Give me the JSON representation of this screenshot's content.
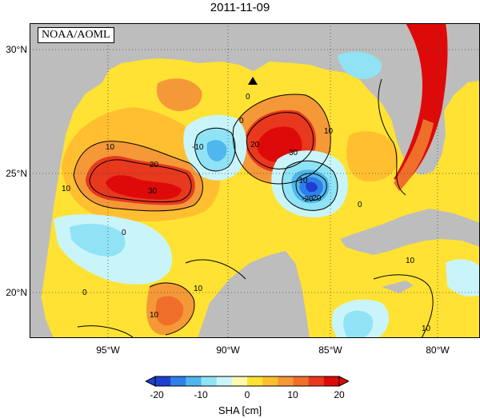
{
  "title": "2011-11-09",
  "credit": "NOAA/AOML",
  "lat_labels": [
    "30°N",
    "25°N",
    "20°N"
  ],
  "lon_labels": [
    "95°W",
    "90°W",
    "85°W",
    "80°W"
  ],
  "contour_labels": [
    "10",
    "20",
    "30",
    "0",
    "-10",
    "-20",
    "10",
    "20",
    "30",
    "0",
    "10",
    "0",
    "10",
    "-10",
    "-20",
    "10",
    "0",
    "10",
    "10",
    "0"
  ],
  "colorbar": {
    "ticks": [
      "-20",
      "-10",
      "0",
      "10",
      "20"
    ],
    "label": "SHA [cm]",
    "colors": [
      "#1f3fd0",
      "#2f7fe8",
      "#4fb7ee",
      "#8fe3f5",
      "#c9f5fa",
      "#fff8b0",
      "#ffe233",
      "#ffbf30",
      "#f49838",
      "#ef6f2a",
      "#e8381e",
      "#de0a0a"
    ]
  },
  "marker": "station-triangle"
}
